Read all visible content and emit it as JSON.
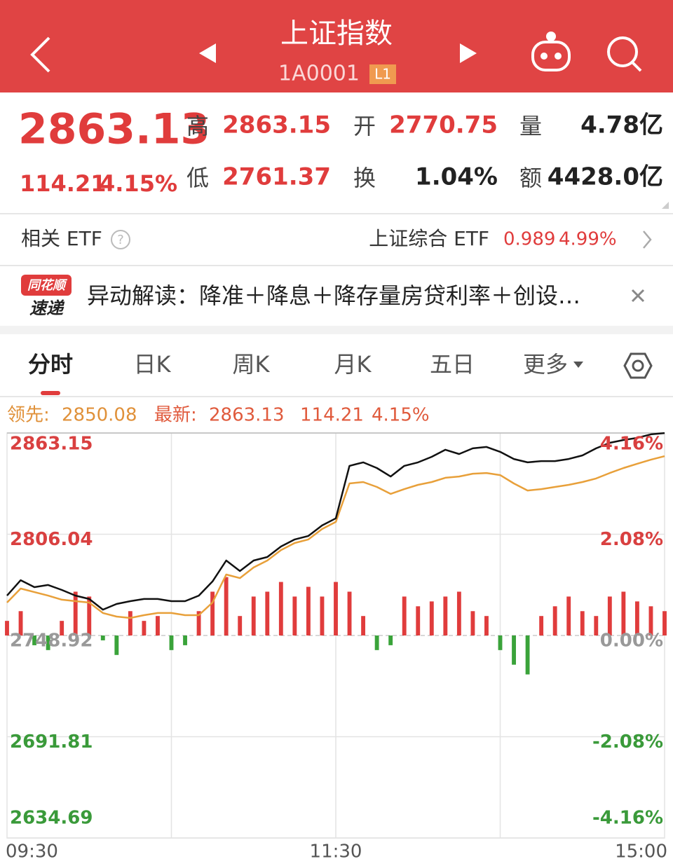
{
  "header": {
    "title": "上证指数",
    "code": "1A0001",
    "badge": "L1"
  },
  "quote": {
    "price": "2863.13",
    "change": "114.21",
    "pct": "4.15%",
    "stats": [
      {
        "label": "高",
        "value": "2863.15"
      },
      {
        "label": "开",
        "value": "2770.75"
      },
      {
        "label": "量",
        "value": "4.78亿"
      },
      {
        "label": "低",
        "value": "2761.37"
      },
      {
        "label": "换",
        "value": "1.04%"
      },
      {
        "label": "额",
        "value": "4428.0亿"
      }
    ]
  },
  "etf": {
    "label": "相关 ETF",
    "name": "上证综合 ETF",
    "price": "0.989",
    "pct": "4.99%"
  },
  "news": {
    "brand_top": "同花顺",
    "brand_bottom": "速递",
    "text": "异动解读：降准＋降息＋降存量房贷利率＋创设…"
  },
  "tabs": [
    "分时",
    "日K",
    "周K",
    "月K",
    "五日",
    "更多"
  ],
  "chart_data": {
    "type": "line",
    "categories": [
      "09:30",
      null,
      null,
      null,
      null,
      null,
      null,
      null,
      null,
      null,
      null,
      null,
      null,
      null,
      null,
      null,
      null,
      null,
      null,
      null,
      null,
      null,
      null,
      null,
      "11:30",
      null,
      null,
      null,
      null,
      null,
      null,
      null,
      null,
      null,
      null,
      null,
      null,
      null,
      null,
      null,
      null,
      null,
      null,
      null,
      null,
      null,
      null,
      null,
      "15:00"
    ],
    "series": [
      {
        "name": "领先:",
        "color": "#e8a03a",
        "values": [
          2767.5,
          2775.4,
          2773.4,
          2771.4,
          2769.1,
          2768.3,
          2767.5,
          2761.6,
          2759.6,
          2758.8,
          2760.4,
          2761.6,
          2761.6,
          2760.4,
          2760.4,
          2767.5,
          2783.3,
          2781.3,
          2787.3,
          2791.2,
          2797.1,
          2801.1,
          2803.1,
          2809.0,
          2813.0,
          2834.7,
          2835.5,
          2832.7,
          2828.8,
          2831.5,
          2833.9,
          2835.5,
          2837.9,
          2838.6,
          2840.2,
          2840.6,
          2839.4,
          2834.7,
          2830.7,
          2831.5,
          2832.7,
          2833.9,
          2835.5,
          2837.5,
          2840.6,
          2843.4,
          2845.8,
          2848.1,
          2850.08
        ]
      },
      {
        "name": "最新:",
        "color": "#111111",
        "values": [
          2771.4,
          2780.1,
          2776.2,
          2777.4,
          2774.6,
          2771.4,
          2769.5,
          2763.5,
          2766.7,
          2768.3,
          2769.5,
          2769.5,
          2768.3,
          2768.3,
          2771.4,
          2779.4,
          2791.2,
          2785.3,
          2791.2,
          2793.2,
          2799.1,
          2803.1,
          2805.1,
          2811.0,
          2815.0,
          2844.6,
          2846.6,
          2843.4,
          2838.6,
          2844.6,
          2846.6,
          2849.7,
          2853.7,
          2851.3,
          2854.5,
          2855.3,
          2852.5,
          2848.5,
          2846.6,
          2847.3,
          2847.3,
          2848.5,
          2850.5,
          2854.5,
          2857.6,
          2859.2,
          2860.4,
          2862.4,
          2863.13
        ]
      }
    ],
    "bars": {
      "axis": "y2",
      "up_color": "#e03c3c",
      "down_color": "#3aa33a",
      "values": [
        0.3,
        0.5,
        -0.2,
        -0.3,
        0.3,
        0.9,
        0.8,
        -0.1,
        -0.4,
        0.5,
        0.3,
        0.4,
        -0.3,
        -0.2,
        0.5,
        0.9,
        1.2,
        0.4,
        0.8,
        0.9,
        1.1,
        0.8,
        1.0,
        0.8,
        1.1,
        0.9,
        0.4,
        -0.3,
        -0.2,
        0.8,
        0.6,
        0.7,
        0.8,
        0.9,
        0.5,
        0.4,
        -0.3,
        -0.6,
        -0.8,
        0.4,
        0.6,
        0.8,
        0.5,
        0.4,
        0.8,
        0.9,
        0.7,
        0.6,
        0.5
      ]
    },
    "ylim": [
      2634.69,
      2863.15
    ],
    "yticks": [
      2634.69,
      2691.81,
      2748.92,
      2806.04,
      2863.15
    ],
    "y2lim": [
      -4.16,
      4.16
    ],
    "y2ticks": [
      {
        "value": -4.16,
        "label": "-4.16%"
      },
      {
        "value": -2.08,
        "label": "-2.08%"
      },
      {
        "value": 0,
        "label": "0.00%"
      },
      {
        "value": 2.08,
        "label": "2.08%"
      },
      {
        "value": 4.16,
        "label": "4.16%"
      }
    ],
    "grid": true
  }
}
